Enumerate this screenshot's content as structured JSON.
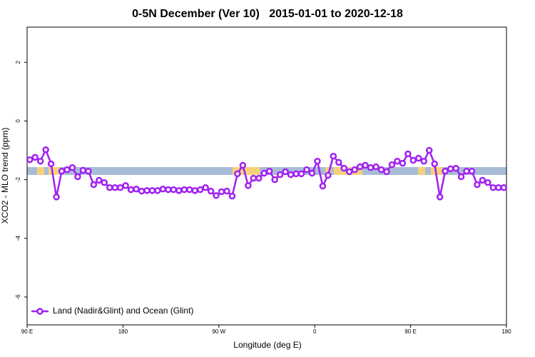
{
  "chart_data": {
    "type": "line",
    "title": "0-5N December (Ver 10)   2015-01-01 to 2020-12-18",
    "x_label": "Longitude (deg E)",
    "y_label": "XCO2 - MLO trend (ppm)",
    "xlim": [
      90,
      540
    ],
    "ylim": [
      -6.95,
      3.2
    ],
    "xticks": [
      {
        "value": 90,
        "label": "90 E"
      },
      180,
      {
        "value": 270,
        "label": "90 W"
      },
      {
        "value": 360,
        "label": "0"
      },
      {
        "value": 450,
        "label": "90 E"
      },
      {
        "value": 540,
        "label": "180"
      }
    ],
    "yticks": [
      2,
      0,
      -2,
      -4,
      -6
    ],
    "legend": "bottom-left",
    "x": [
      92.5,
      97.5,
      102.5,
      107.5,
      112.5,
      117.5,
      122.5,
      127.5,
      132.5,
      137.5,
      142.5,
      147.5,
      152.5,
      157.5,
      162.5,
      167.5,
      172.5,
      177.5,
      182.5,
      187.5,
      192.5,
      197.5,
      202.5,
      207.5,
      212.5,
      217.5,
      222.5,
      227.5,
      232.5,
      237.5,
      242.5,
      247.5,
      252.5,
      257.5,
      262.5,
      267.5,
      272.5,
      277.5,
      282.5,
      287.5,
      292.5,
      297.5,
      302.5,
      307.5,
      312.5,
      317.5,
      322.5,
      327.5,
      332.5,
      337.5,
      342.5,
      347.5,
      352.5,
      357.5,
      362.5,
      367.5,
      372.5,
      377.5,
      382.5,
      387.5,
      392.5,
      397.5,
      402.5,
      407.5,
      412.5,
      417.5,
      422.5,
      427.5,
      432.5,
      437.5,
      442.5,
      447.5,
      452.5,
      457.5,
      462.5,
      467.5,
      472.5,
      477.5,
      482.5,
      487.5,
      492.5,
      497.5,
      502.5,
      507.5,
      512.5,
      517.5,
      522.5,
      527.5,
      532.5,
      537.5
    ],
    "series": [
      {
        "name": "Land (Nadir&Glint) and Ocean (Glint)",
        "color": "#a020f0",
        "values": [
          -1.32,
          -1.24,
          -1.37,
          -0.98,
          -1.46,
          -2.59,
          -1.71,
          -1.66,
          -1.59,
          -1.9,
          -1.68,
          -1.71,
          -2.17,
          -2.02,
          -2.1,
          -2.27,
          -2.27,
          -2.27,
          -2.2,
          -2.34,
          -2.32,
          -2.39,
          -2.37,
          -2.37,
          -2.37,
          -2.32,
          -2.34,
          -2.34,
          -2.37,
          -2.34,
          -2.34,
          -2.37,
          -2.34,
          -2.27,
          -2.39,
          -2.54,
          -2.41,
          -2.39,
          -2.56,
          -1.8,
          -1.51,
          -2.2,
          -1.95,
          -1.95,
          -1.78,
          -1.71,
          -2.0,
          -1.83,
          -1.73,
          -1.83,
          -1.8,
          -1.8,
          -1.66,
          -1.78,
          -1.37,
          -2.22,
          -1.85,
          -1.2,
          -1.41,
          -1.61,
          -1.73,
          -1.66,
          -1.56,
          -1.51,
          -1.59,
          -1.56,
          -1.66,
          -1.73,
          -1.49,
          -1.37,
          -1.44,
          -1.12,
          -1.34,
          -1.27,
          -1.37,
          -1.0,
          -1.46,
          -2.59,
          -1.71,
          -1.63,
          -1.61,
          -1.9,
          -1.71,
          -1.71,
          -2.17,
          -2.02,
          -2.1,
          -2.27,
          -2.27,
          -2.27
        ]
      }
    ]
  }
}
